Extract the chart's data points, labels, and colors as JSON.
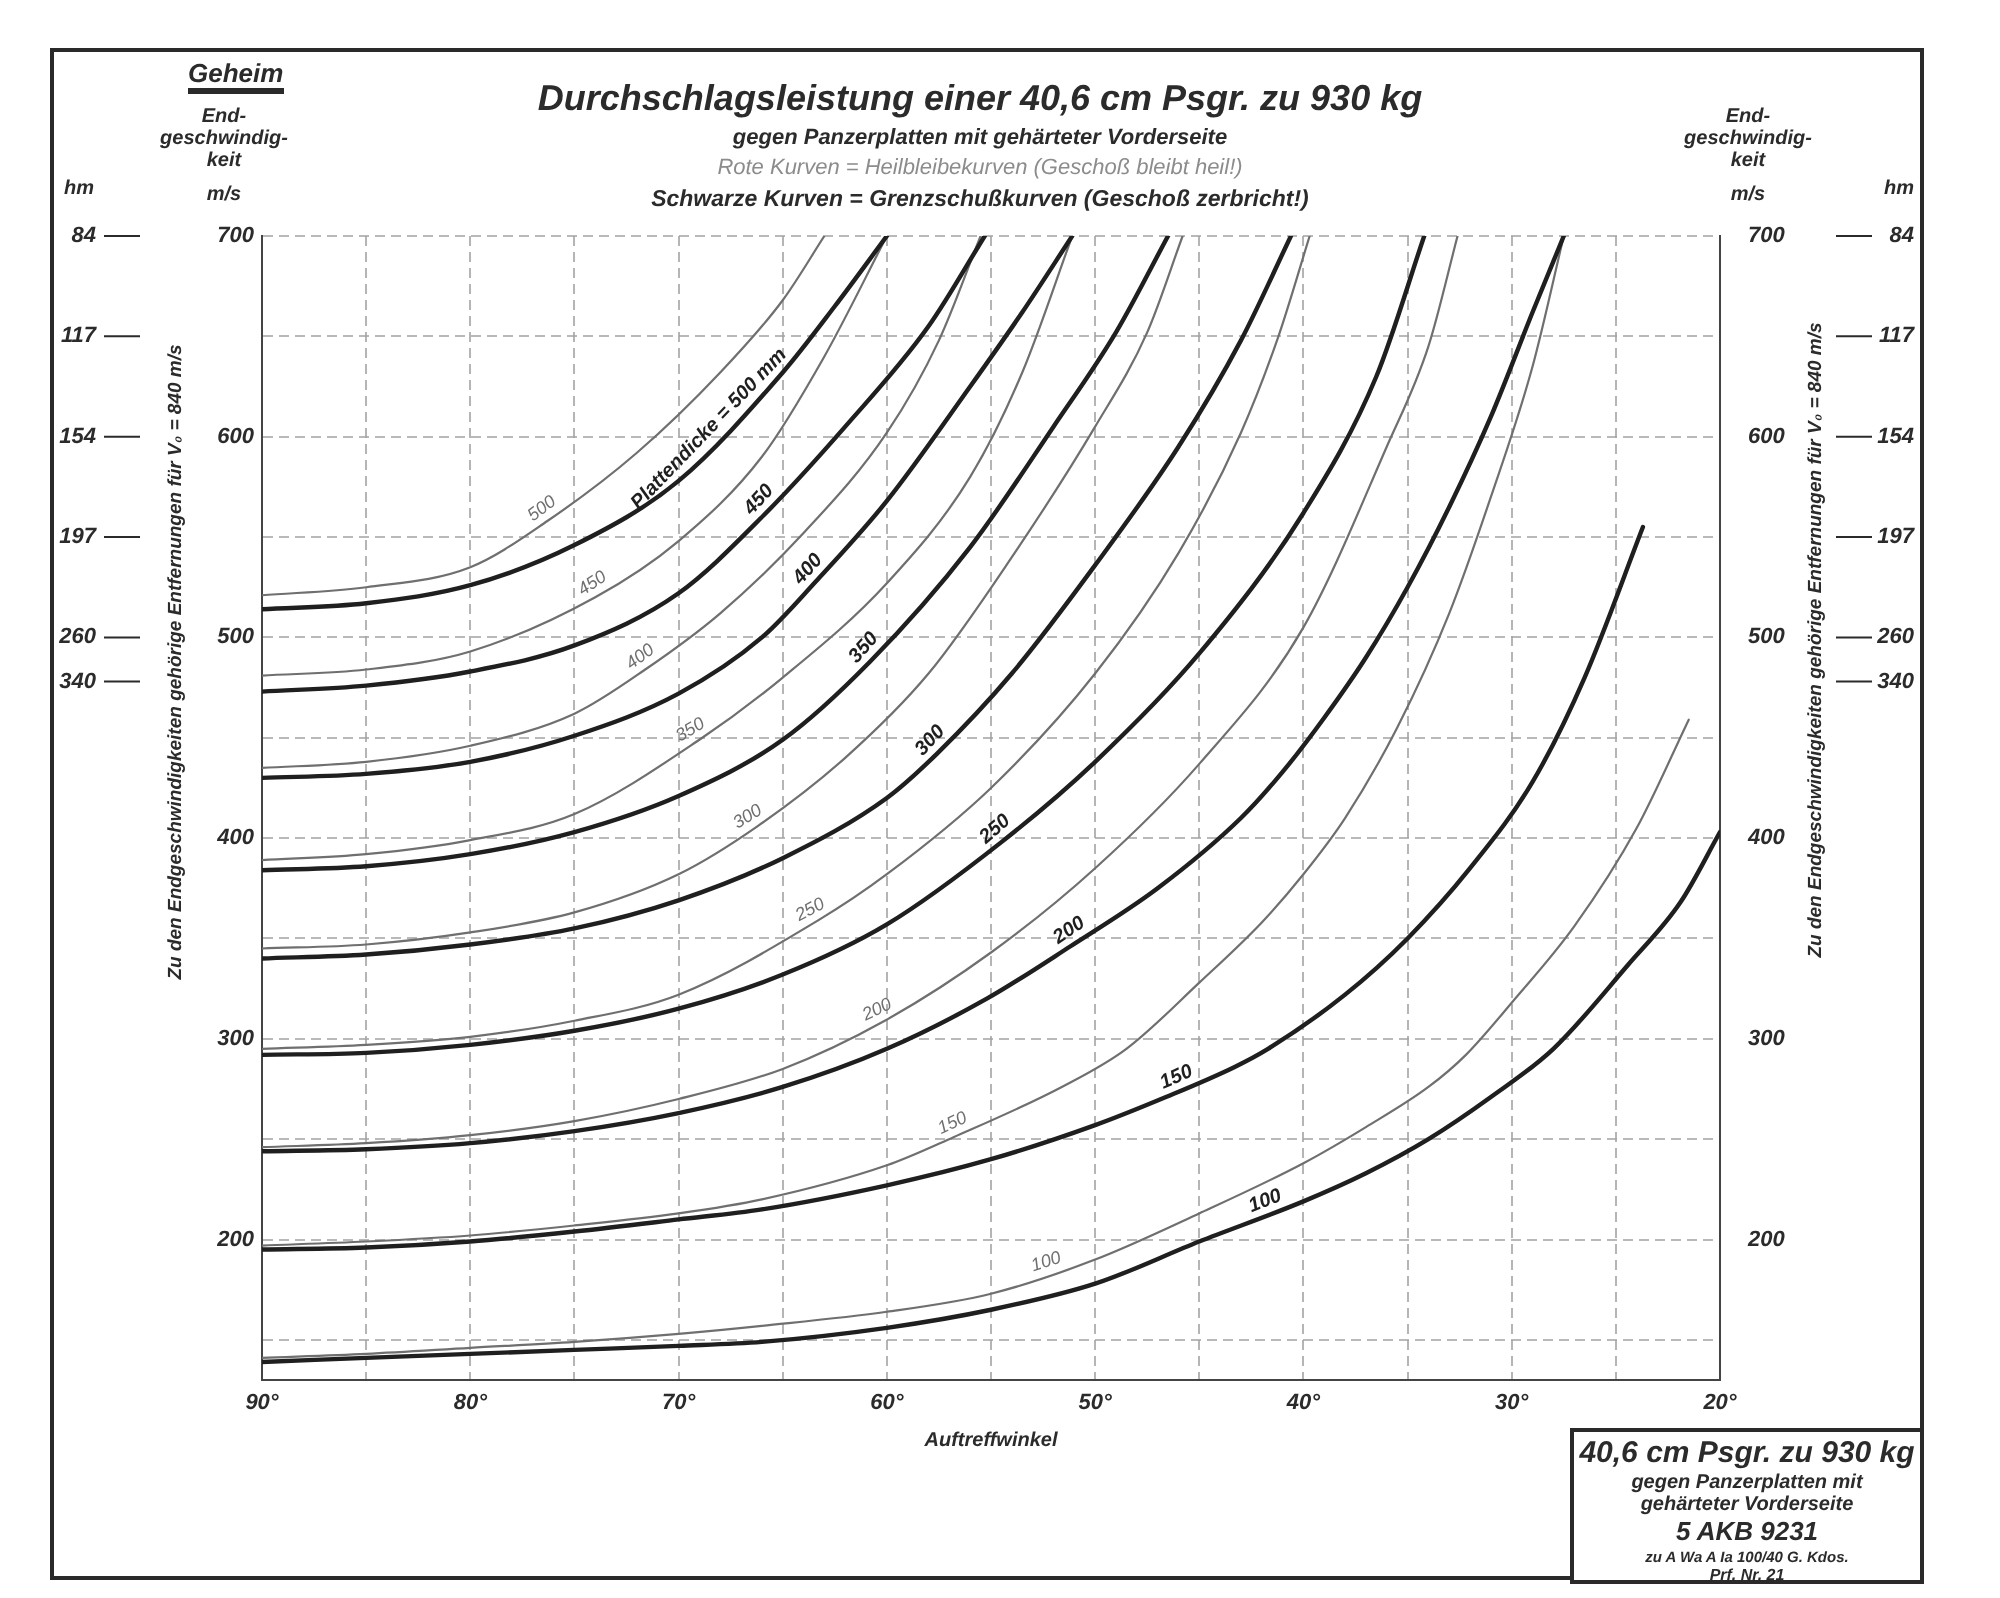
{
  "chart_data": {
    "type": "line",
    "title": "Durchschlagsleistung einer 40,6 cm Psgr. zu 930 kg",
    "subtitle": "gegen Panzerplatten mit gehärteter Vorderseite",
    "xlabel": "Auftreffwinkel",
    "ylabel": "End-geschwindig-keit m/s",
    "y2label": "End-geschwindig-keit m/s",
    "annotations": [
      "Geheim",
      "Rote Kurven = Heilbleibekurven (Geschoß bleibt heil!)",
      "Schwarze Kurven = Grenzschußkurven (Geschoß zerbricht!)",
      "hm",
      "Zu den Endgeschwindigkeiten gehörige Entfernungen für V₀ = 840 m/s",
      "hm",
      "Zu den Endgeschwindigkeiten gehörige Entfernungen für V₀ = 840 m/s",
      "40,6 cm Psgr. zu 930 kg",
      "gegen Panzerplatten mit gehärteter Vorderseite",
      "5 AKB 9231",
      "zu A Wa A Ia 100/40 G. Kdos.",
      "Prf. Nr. 21",
      "84",
      "117",
      "154",
      "197",
      "260",
      "340",
      "84",
      "117",
      "154",
      "197",
      "260",
      "340"
    ],
    "xlim": [
      90,
      20
    ],
    "xticks": [
      {
        "value": 90,
        "label": "90°"
      },
      {
        "value": 85,
        "label": null
      },
      {
        "value": 80,
        "label": "80°"
      },
      {
        "value": 75,
        "label": null
      },
      {
        "value": 70,
        "label": "70°"
      },
      {
        "value": 65,
        "label": null
      },
      {
        "value": 60,
        "label": "60°"
      },
      {
        "value": 55,
        "label": null
      },
      {
        "value": 50,
        "label": "50°"
      },
      {
        "value": 45,
        "label": null
      },
      {
        "value": 40,
        "label": "40°"
      },
      {
        "value": 35,
        "label": null
      },
      {
        "value": 30,
        "label": "30°"
      },
      {
        "value": 25,
        "label": null
      },
      {
        "value": 20,
        "label": "20°"
      }
    ],
    "ylim": [
      130,
      700
    ],
    "yticks": [
      {
        "value": 150,
        "label": null
      },
      200,
      {
        "value": 250,
        "label": null
      },
      300,
      {
        "value": 350,
        "label": null
      },
      400,
      {
        "value": 450,
        "label": null
      },
      500,
      {
        "value": 550,
        "label": null
      },
      600,
      {
        "value": 650,
        "label": null
      },
      700
    ],
    "y2lim": [
      130,
      700
    ],
    "y2ticks": [
      200,
      300,
      400,
      500,
      600,
      700
    ],
    "grid": true,
    "marker": "none",
    "series": [
      {
        "name": "Plattendicke = 500 mm",
        "color": "#1f1f1f",
        "x": [
          90,
          85,
          80,
          75,
          70,
          65,
          62.5,
          60
        ],
        "values": [
          514,
          517,
          526,
          546,
          578,
          632,
          665,
          700
        ]
      },
      {
        "name": "450",
        "color": "#1f1f1f",
        "x": [
          90,
          85,
          80,
          75,
          70,
          65.9,
          62,
          58,
          55.3
        ],
        "values": [
          473,
          476,
          483,
          496,
          522,
          561,
          605,
          655,
          700
        ]
      },
      {
        "name": "400",
        "color": "#1f1f1f",
        "x": [
          90,
          85,
          80,
          75,
          70,
          66,
          63.4,
          60,
          56,
          53.5,
          51.1
        ],
        "values": [
          430,
          432,
          438,
          451,
          472,
          500,
          528,
          568,
          625,
          662,
          700
        ]
      },
      {
        "name": "350",
        "color": "#1f1f1f",
        "x": [
          90,
          85,
          80,
          75,
          70,
          65,
          60.8,
          56,
          52,
          49,
          46.5
        ],
        "values": [
          384,
          386,
          392,
          403,
          421,
          449,
          488,
          545,
          605,
          652,
          700
        ]
      },
      {
        "name": "300",
        "color": "#1f1f1f",
        "x": [
          90,
          85,
          80,
          75,
          70,
          65,
          60,
          57.6,
          54,
          50,
          46,
          43,
          40.6
        ],
        "values": [
          340,
          342,
          347,
          355,
          369,
          390,
          420,
          442,
          482,
          536,
          595,
          648,
          700
        ]
      },
      {
        "name": "250",
        "color": "#1f1f1f",
        "x": [
          90,
          85,
          80,
          75,
          70,
          65,
          60,
          54.5,
          50,
          45,
          40,
          36.5,
          34.2
        ],
        "values": [
          292,
          293,
          297,
          304,
          315,
          332,
          357,
          398,
          438,
          492,
          562,
          630,
          700
        ]
      },
      {
        "name": "200",
        "color": "#1f1f1f",
        "x": [
          90,
          85,
          80,
          75,
          70,
          65,
          60,
          55.2,
          51.2,
          47,
          43,
          41,
          39,
          37,
          35,
          33,
          31,
          29,
          27.5
        ],
        "values": [
          244,
          245,
          248,
          254,
          263,
          276,
          295,
          320,
          346,
          375,
          410,
          433,
          460,
          490,
          525,
          565,
          610,
          662,
          700
        ]
      },
      {
        "name": "150",
        "color": "#1f1f1f",
        "x": [
          90,
          85,
          80,
          75,
          70,
          66,
          60,
          55,
          50,
          46.6,
          43.3,
          41.7,
          38,
          35,
          32,
          29,
          26.5,
          23.7
        ],
        "values": [
          195,
          196,
          199,
          204,
          210,
          215,
          227,
          240,
          257,
          271,
          286,
          295,
          322,
          350,
          385,
          428,
          480,
          555
        ]
      },
      {
        "name": "100",
        "color": "#1f1f1f",
        "x": [
          90,
          85,
          80,
          75,
          70,
          66,
          60,
          55,
          50,
          45,
          40,
          37,
          34,
          31,
          28,
          24.4,
          21.9,
          20
        ],
        "values": [
          139,
          141,
          143,
          145,
          147,
          149,
          156,
          165,
          178,
          199,
          219,
          233,
          250,
          271,
          295,
          337,
          368,
          403
        ]
      },
      {
        "name": "500",
        "color": "#6f6f6f",
        "x": [
          90,
          85,
          80,
          76.3,
          72,
          68,
          65,
          63
        ],
        "values": [
          521,
          525,
          535,
          558,
          592,
          632,
          668,
          700
        ]
      },
      {
        "name": "450",
        "color": "#6f6f6f",
        "x": [
          90,
          85,
          80,
          74,
          70,
          66,
          63,
          60
        ],
        "values": [
          481,
          484,
          493,
          520,
          548,
          590,
          640,
          700
        ]
      },
      {
        "name": "400",
        "color": "#6f6f6f",
        "x": [
          90,
          85,
          80,
          75,
          71.6,
          68,
          64,
          60,
          57.5,
          55.5
        ],
        "values": [
          435,
          438,
          446,
          462,
          484,
          512,
          552,
          602,
          648,
          700
        ]
      },
      {
        "name": "350",
        "color": "#6f6f6f",
        "x": [
          90,
          85,
          80,
          75,
          69,
          65,
          60,
          56,
          53.5,
          51.1
        ],
        "values": [
          389,
          392,
          399,
          412,
          449,
          480,
          527,
          580,
          632,
          700
        ]
      },
      {
        "name": "300",
        "color": "#6f6f6f",
        "x": [
          90,
          85,
          80,
          75,
          70,
          66.2,
          62,
          58,
          54,
          50,
          47.5,
          45.8
        ],
        "values": [
          345,
          347,
          353,
          363,
          382,
          406,
          440,
          482,
          540,
          605,
          652,
          700
        ]
      },
      {
        "name": "250",
        "color": "#6f6f6f",
        "x": [
          90,
          85,
          80,
          75,
          70,
          63.3,
          60,
          55,
          50,
          46,
          43,
          41.2,
          39.7
        ],
        "values": [
          295,
          297,
          301,
          309,
          322,
          359,
          382,
          425,
          482,
          542,
          602,
          650,
          700
        ]
      },
      {
        "name": "200",
        "color": "#6f6f6f",
        "x": [
          90,
          85,
          80,
          75,
          70,
          65,
          60.1,
          55,
          50,
          45,
          40,
          36,
          34,
          32.6
        ],
        "values": [
          246,
          248,
          252,
          259,
          270,
          285,
          309,
          343,
          385,
          437,
          505,
          595,
          645,
          700
        ]
      },
      {
        "name": "150",
        "color": "#6f6f6f",
        "x": [
          90,
          85,
          80,
          75,
          70,
          66,
          60,
          56.8,
          51.6,
          48.5,
          45,
          42,
          40,
          38,
          35.5,
          33,
          31,
          29,
          27.5
        ],
        "values": [
          197,
          199,
          202,
          207,
          213,
          220,
          237,
          251,
          276,
          295,
          328,
          358,
          382,
          410,
          455,
          512,
          570,
          635,
          700
        ]
      },
      {
        "name": "100",
        "color": "#6f6f6f",
        "x": [
          90,
          85,
          80,
          75,
          70,
          66,
          60,
          55,
          50,
          45,
          40,
          37,
          34,
          32.2,
          30,
          27,
          24,
          21.5
        ],
        "values": [
          141,
          143,
          146,
          149,
          153,
          157,
          164,
          173,
          190,
          213,
          238,
          256,
          276,
          292,
          318,
          356,
          405,
          459
        ]
      }
    ]
  }
}
